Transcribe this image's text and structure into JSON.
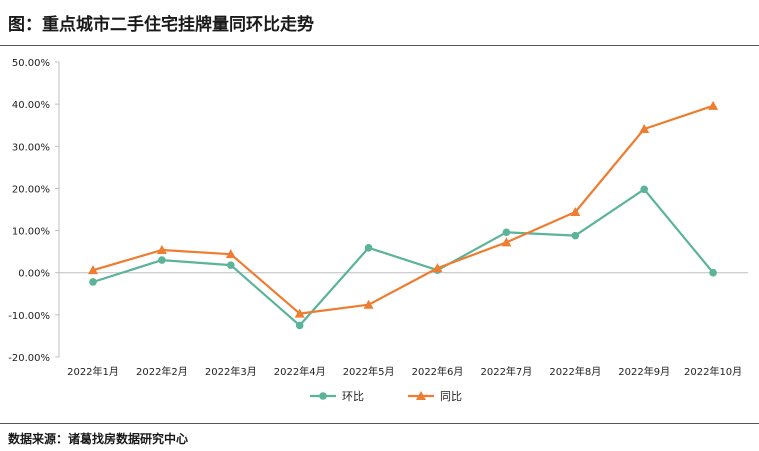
{
  "header": {
    "title": "图：重点城市二手住宅挂牌量同环比走势"
  },
  "footer": {
    "source": "数据来源：诸葛找房数据研究中心"
  },
  "chart_data": {
    "type": "line",
    "title": "图：重点城市二手住宅挂牌量同环比走势",
    "xlabel": "",
    "ylabel": "",
    "categories": [
      "2022年1月",
      "2022年2月",
      "2022年3月",
      "2022年4月",
      "2022年5月",
      "2022年6月",
      "2022年7月",
      "2022年8月",
      "2022年9月",
      "2022年10月"
    ],
    "ylim": [
      -20,
      50
    ],
    "yticks": [
      50,
      40,
      30,
      20,
      10,
      0,
      -10,
      -20
    ],
    "ytick_labels": [
      "50.00%",
      "40.00%",
      "30.00%",
      "20.00%",
      "10.00%",
      "0.00%",
      "-10.00%",
      "-20.00%"
    ],
    "grid": false,
    "legend_position": "bottom",
    "series": [
      {
        "name": "环比",
        "color": "#5bb39a",
        "marker": "circle",
        "values": [
          -2.2,
          3.0,
          1.8,
          -12.5,
          5.9,
          0.6,
          9.6,
          8.8,
          19.8,
          0.0
        ]
      },
      {
        "name": "同比",
        "color": "#ed7d31",
        "marker": "triangle",
        "values": [
          0.6,
          5.4,
          4.4,
          -9.7,
          -7.6,
          1.1,
          7.2,
          14.4,
          34.1,
          39.6
        ]
      }
    ]
  }
}
